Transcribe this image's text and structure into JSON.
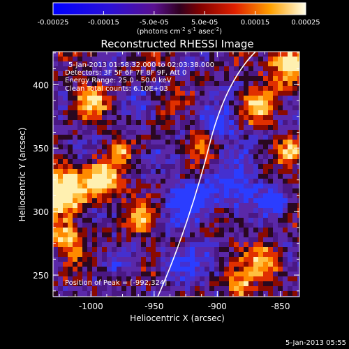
{
  "colorbar": {
    "ticks": [
      {
        "label": "-0.00025",
        "value": -0.00025
      },
      {
        "label": "-0.00015",
        "value": -0.00015
      },
      {
        "label": "-5.0e-05",
        "value": -5e-05
      },
      {
        "label": "5.0e-05",
        "value": 5e-05
      },
      {
        "label": "0.00015",
        "value": 0.00015
      },
      {
        "label": "0.00025",
        "value": 0.00025
      }
    ],
    "min": -0.00025,
    "max": 0.00025,
    "unit_base": "(photons cm",
    "unit_exp1": "-2",
    "unit_mid": " s",
    "unit_exp2": "-1",
    "unit_mid2": " asec",
    "unit_exp3": "-2",
    "unit_end": ")"
  },
  "title": "Reconstructed RHESSI Image",
  "info_lines": [
    "5-Jan-2013 01:58:32.000 to 02:03:38.000",
    "Detectors: 3F 5F 6F 7F 8F 9F, Att 0",
    "Energy Range: 25.0 - 50.0 keV",
    "Clean    Total counts: 6.10E+03"
  ],
  "peak_label": "Position of Peak = [-992,324]",
  "xaxis": {
    "label": "Heliocentric X (arcsec)",
    "ticks": [
      {
        "label": "-1000",
        "value": -1000
      },
      {
        "label": "-950",
        "value": -950
      },
      {
        "label": "-900",
        "value": -900
      },
      {
        "label": "-850",
        "value": -850
      }
    ],
    "range": [
      -1030,
      -835
    ]
  },
  "yaxis": {
    "label": "Heliocentric Y (arcsec)",
    "ticks": [
      {
        "label": "250",
        "value": 250
      },
      {
        "label": "300",
        "value": 300
      },
      {
        "label": "350",
        "value": 350
      },
      {
        "label": "400",
        "value": 400
      }
    ],
    "range": [
      233,
      426
    ]
  },
  "footer_timestamp": "5-Jan-2013 05:55",
  "colors": {
    "background": "#000000",
    "foreground": "#ffffff",
    "limb": "#ffffff"
  }
}
